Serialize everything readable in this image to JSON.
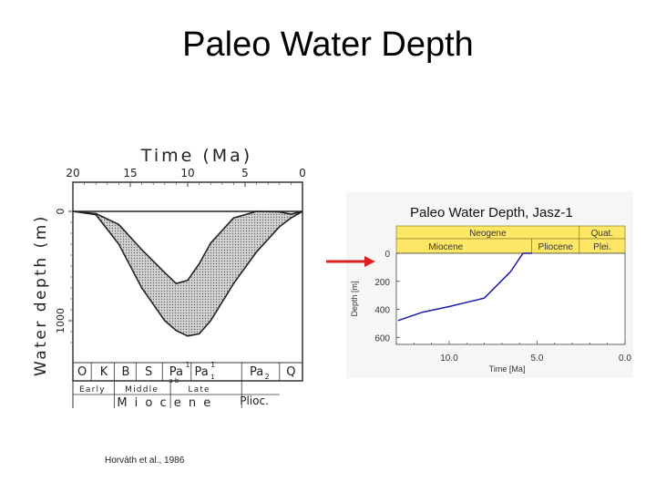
{
  "slide": {
    "title": "Paleo Water Depth",
    "citation": "Horváth et al., 1986"
  },
  "colors": {
    "arrow": "#e02020",
    "right_line": "#1b1ba8",
    "period_band": "#ffe766",
    "left_shade": "#b8b8b8"
  },
  "chart_data": [
    {
      "type": "area",
      "title": "Time (Ma)",
      "xlabel": "Time (Ma)",
      "ylabel": "Water depth (m)",
      "x_axis": {
        "min": 20,
        "max": 0,
        "ticks": [
          20,
          15,
          10,
          5,
          0
        ]
      },
      "y_axis": {
        "min": 0,
        "max": 1250,
        "inverted": true,
        "ticks": [
          {
            "value": 0,
            "label": "0"
          },
          {
            "value": 1000,
            "label": "1000"
          }
        ]
      },
      "series": [
        {
          "kind": "range-band",
          "x": [
            20,
            18,
            16,
            14,
            12,
            11,
            10,
            9,
            8,
            6,
            4,
            2,
            1,
            0
          ],
          "shallow": [
            0,
            20,
            120,
            350,
            560,
            660,
            630,
            480,
            290,
            60,
            0,
            5,
            25,
            0
          ],
          "deep": [
            0,
            30,
            300,
            700,
            1000,
            1090,
            1140,
            1120,
            1000,
            660,
            370,
            140,
            60,
            0
          ]
        }
      ],
      "stages": [
        {
          "label": "O",
          "x": 19.2
        },
        {
          "label": "K",
          "x": 17.3
        },
        {
          "label": "B",
          "x": 15.4
        },
        {
          "label": "S",
          "x": 13.4
        },
        {
          "label": "Pa1",
          "x": 11.0
        },
        {
          "label": "Pa2",
          "x": 8.8
        },
        {
          "label": "Pa3",
          "x": 4.0
        },
        {
          "label": "Q",
          "x": 1.0
        }
      ],
      "stage_subs": {
        "pa1_sup": "1",
        "pa1_sub": "a b",
        "pa2_sup": "1",
        "pa2_sub": "1",
        "pa3_sub": "2"
      },
      "subepochs": [
        {
          "label": "Early",
          "x": 18.3
        },
        {
          "label": "Middle",
          "x": 14.0
        },
        {
          "label": "Late",
          "x": 9.0
        },
        {
          "label": "Plioc.",
          "x": 4.2
        }
      ],
      "epoch": {
        "label": "M i o c e n e",
        "x": 12.0
      }
    },
    {
      "type": "line",
      "title": "Paleo Water Depth, Jasz-1",
      "xlabel": "Time [Ma]",
      "ylabel": "Depth [m]",
      "x_axis": {
        "min": 13.0,
        "max": 0.0,
        "ticks": [
          {
            "value": 10.0,
            "label": "10.0"
          },
          {
            "value": 5.0,
            "label": "5.0"
          },
          {
            "value": 0.0,
            "label": "0.0"
          }
        ]
      },
      "y_axis": {
        "min": 0,
        "max": 650,
        "inverted": true,
        "ticks": [
          0,
          200,
          400,
          600
        ]
      },
      "series": [
        {
          "x": [
            12.9,
            11.5,
            10.0,
            8.0,
            6.5,
            5.8,
            5.3
          ],
          "y": [
            480,
            420,
            380,
            320,
            130,
            0,
            0
          ]
        }
      ],
      "periods": [
        {
          "label": "Neogene",
          "start": 13.0,
          "end": 2.6
        },
        {
          "label": "Quat.",
          "start": 2.6,
          "end": 0.0
        }
      ],
      "epochs": [
        {
          "label": "Miocene",
          "start": 13.0,
          "end": 5.3
        },
        {
          "label": "Pliocene",
          "start": 5.3,
          "end": 2.6
        },
        {
          "label": "Plei.",
          "start": 2.6,
          "end": 0.0
        }
      ]
    }
  ]
}
